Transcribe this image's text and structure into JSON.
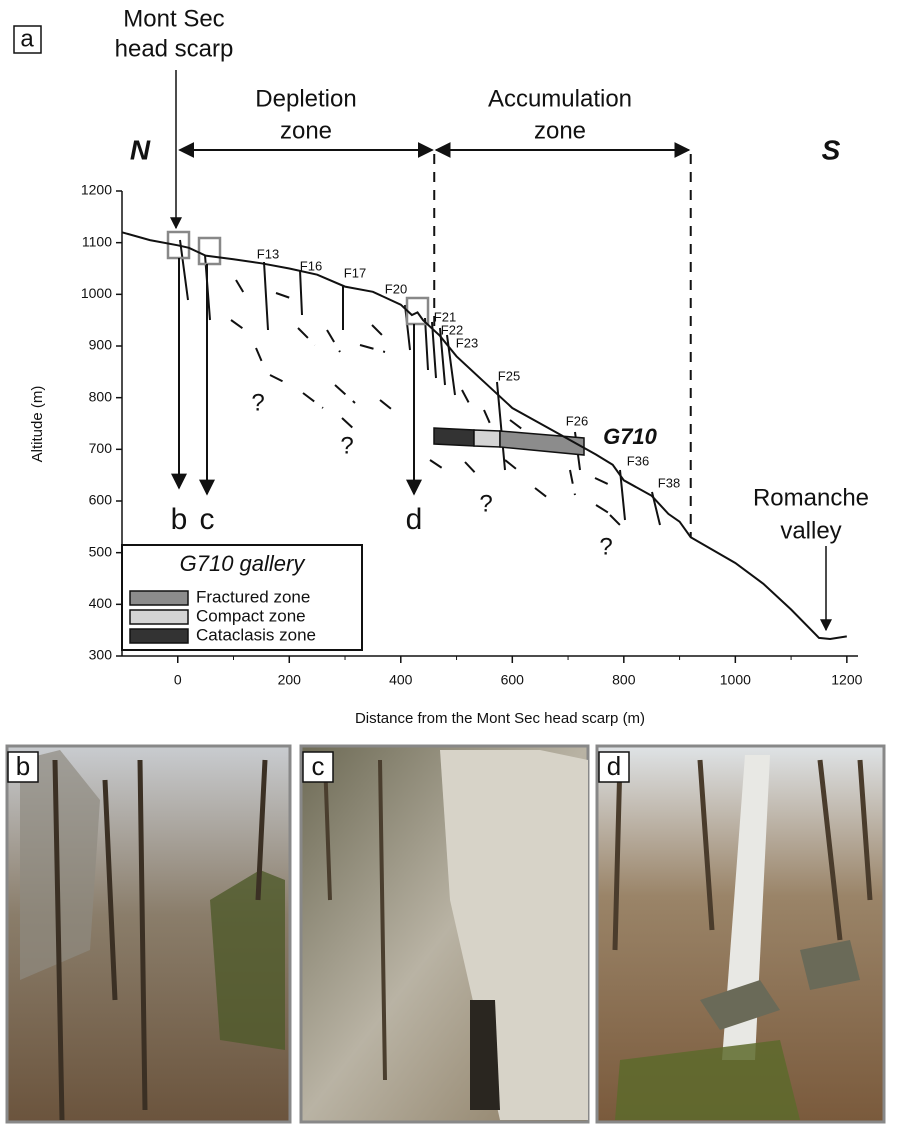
{
  "panel_label": "a",
  "head_scarp_label": [
    "Mont Sec",
    "head scarp"
  ],
  "chart_data": {
    "type": "cross-section",
    "xlabel": "Distance from the Mont Sec head scarp (m)",
    "ylabel": "Altitude (m)",
    "xlim": [
      -100,
      1220
    ],
    "ylim": [
      300,
      1200
    ],
    "xticks": [
      0,
      200,
      400,
      600,
      800,
      1000,
      1200
    ],
    "yticks": [
      300,
      400,
      500,
      600,
      700,
      800,
      900,
      1000,
      1100,
      1200
    ],
    "profile": {
      "x": [
        -100,
        -50,
        0,
        20,
        50,
        100,
        150,
        200,
        250,
        300,
        350,
        400,
        420,
        430,
        440,
        470,
        500,
        550,
        600,
        650,
        700,
        750,
        780,
        800,
        850,
        880,
        900,
        920,
        1000,
        1050,
        1100,
        1150,
        1170,
        1200
      ],
      "y": [
        1120,
        1105,
        1095,
        1090,
        1075,
        1068,
        1060,
        1050,
        1038,
        1015,
        1005,
        980,
        960,
        965,
        950,
        920,
        880,
        830,
        780,
        750,
        720,
        690,
        670,
        640,
        610,
        575,
        560,
        530,
        480,
        440,
        390,
        335,
        333,
        338
      ]
    },
    "zones": [
      {
        "label": [
          "Depletion",
          "zone"
        ],
        "from": 0,
        "to": 460
      },
      {
        "label": [
          "Accumulation",
          "zone"
        ],
        "from": 460,
        "to": 920
      }
    ],
    "direction_labels": [
      "N",
      "S"
    ],
    "fault_labels": [
      "F13",
      "F16",
      "F17",
      "F20",
      "F21",
      "F22",
      "F23",
      "F25",
      "F26",
      "F36",
      "F38"
    ],
    "photo_points": [
      "b",
      "c",
      "d"
    ],
    "question_marks": [
      "?",
      "?",
      "?",
      "?"
    ],
    "gallery_name": "G710",
    "valley_label": [
      "Romanche",
      "valley"
    ],
    "legend": {
      "title": "G710 gallery",
      "items": [
        {
          "name": "Fractured zone",
          "color": "#8c8c8c"
        },
        {
          "name": "Compact zone",
          "color": "#d4d4d4"
        },
        {
          "name": "Cataclasis zone",
          "color": "#333333"
        }
      ]
    }
  },
  "photos": [
    {
      "label": "b"
    },
    {
      "label": "c"
    },
    {
      "label": "d"
    }
  ]
}
